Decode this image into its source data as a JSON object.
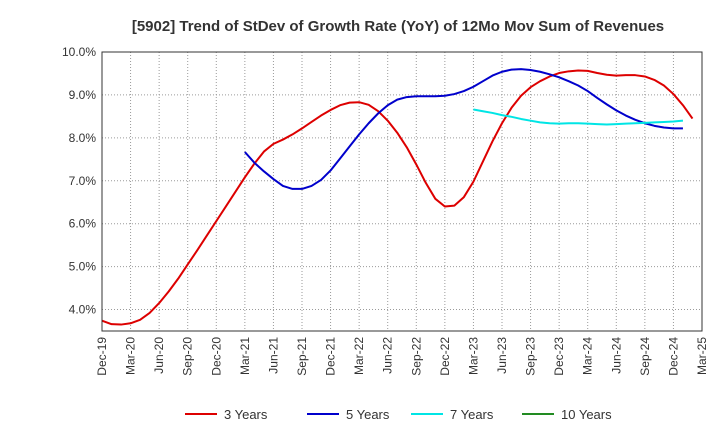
{
  "chart_data": {
    "type": "line",
    "title": "[5902]  Trend of StDev of Growth Rate (YoY) of 12Mo Mov Sum of Revenues",
    "xlabel": "",
    "ylabel": "",
    "ylim": [
      3.5,
      10.0
    ],
    "yticks": [
      4.0,
      5.0,
      6.0,
      7.0,
      8.0,
      9.0,
      10.0
    ],
    "ytick_labels": [
      "4.0%",
      "5.0%",
      "6.0%",
      "7.0%",
      "8.0%",
      "9.0%",
      "10.0%"
    ],
    "xticks": [
      "Dec-19",
      "Mar-20",
      "Jun-20",
      "Sep-20",
      "Dec-20",
      "Mar-21",
      "Jun-21",
      "Sep-21",
      "Dec-21",
      "Mar-22",
      "Jun-22",
      "Sep-22",
      "Dec-22",
      "Mar-23",
      "Jun-23",
      "Sep-23",
      "Dec-23",
      "Mar-24",
      "Jun-24",
      "Sep-24",
      "Dec-24",
      "Mar-25"
    ],
    "grid": true,
    "legend_position": "bottom",
    "series": [
      {
        "name": "3 Years",
        "color": "#dd0000",
        "start_month_index": 0,
        "values": [
          3.74,
          3.66,
          3.65,
          3.68,
          3.76,
          3.92,
          4.15,
          4.42,
          4.72,
          5.05,
          5.38,
          5.72,
          6.06,
          6.4,
          6.74,
          7.08,
          7.4,
          7.68,
          7.86,
          7.96,
          8.08,
          8.22,
          8.37,
          8.52,
          8.65,
          8.76,
          8.82,
          8.83,
          8.77,
          8.62,
          8.4,
          8.12,
          7.78,
          7.38,
          6.95,
          6.58,
          6.4,
          6.42,
          6.62,
          6.98,
          7.45,
          7.92,
          8.34,
          8.7,
          8.98,
          9.18,
          9.32,
          9.43,
          9.51,
          9.55,
          9.57,
          9.56,
          9.51,
          9.47,
          9.45,
          9.46,
          9.46,
          9.43,
          9.35,
          9.22,
          9.02,
          8.76,
          8.45
        ]
      },
      {
        "name": "5 Years",
        "color": "#0000cc",
        "start_month_index": 15,
        "values": [
          7.67,
          7.42,
          7.22,
          7.04,
          6.88,
          6.81,
          6.81,
          6.88,
          7.02,
          7.24,
          7.52,
          7.8,
          8.08,
          8.34,
          8.57,
          8.76,
          8.89,
          8.95,
          8.97,
          8.97,
          8.97,
          8.98,
          9.02,
          9.09,
          9.19,
          9.32,
          9.45,
          9.54,
          9.59,
          9.6,
          9.58,
          9.54,
          9.48,
          9.41,
          9.32,
          9.22,
          9.09,
          8.93,
          8.78,
          8.64,
          8.52,
          8.42,
          8.34,
          8.28,
          8.24,
          8.22,
          8.22
        ]
      },
      {
        "name": "7 Years",
        "color": "#00e5e5",
        "start_month_index": 39,
        "values": [
          8.66,
          8.62,
          8.58,
          8.53,
          8.49,
          8.44,
          8.4,
          8.36,
          8.34,
          8.33,
          8.34,
          8.34,
          8.33,
          8.32,
          8.31,
          8.32,
          8.33,
          8.34,
          8.35,
          8.36,
          8.37,
          8.38,
          8.4
        ]
      },
      {
        "name": "10 Years",
        "color": "#228b22",
        "start_month_index": 0,
        "values": []
      }
    ]
  }
}
